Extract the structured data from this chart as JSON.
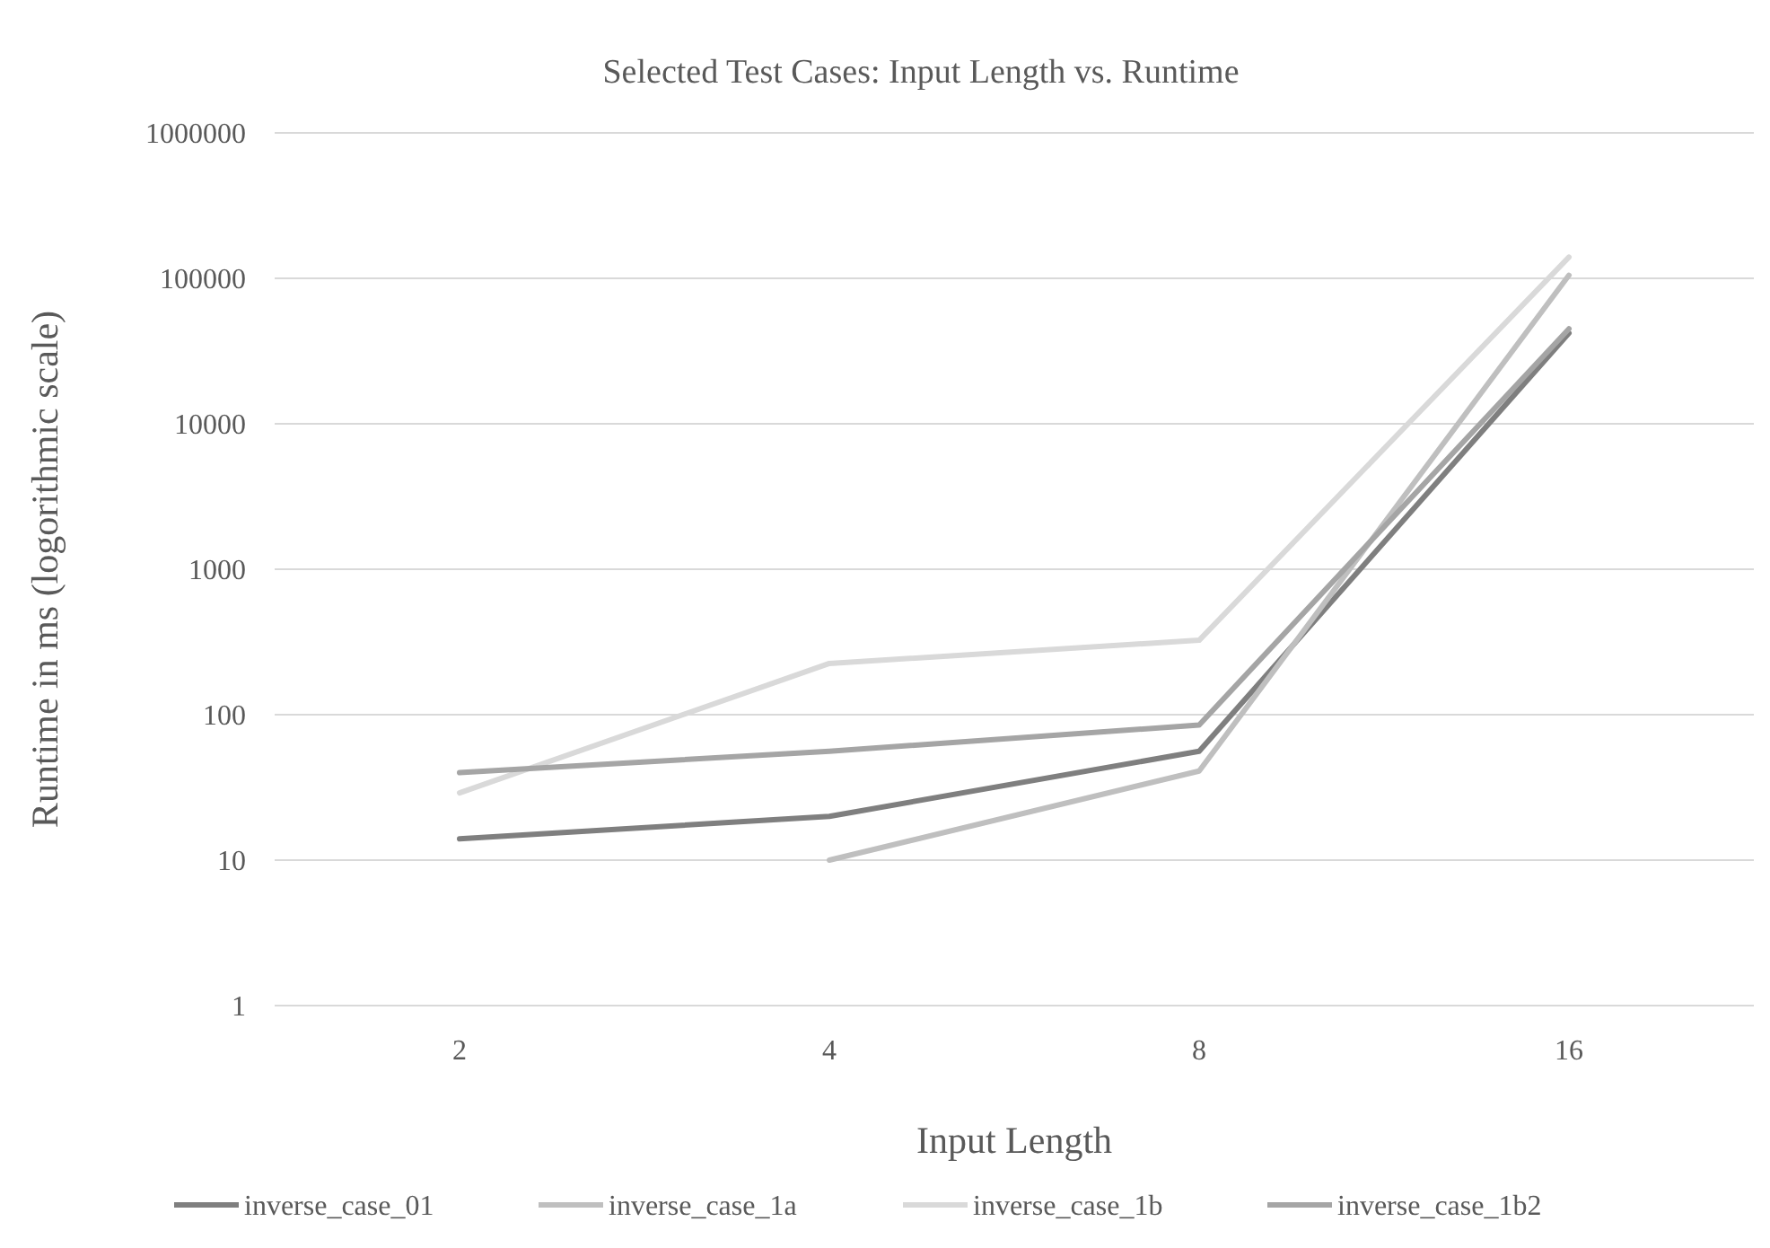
{
  "chart_data": {
    "type": "line",
    "title": "Selected Test Cases: Input Length vs. Runtime",
    "xlabel": "Input Length",
    "ylabel": "Runtime in ms (logorithmic scale)",
    "categories": [
      "2",
      "4",
      "8",
      "16"
    ],
    "series": [
      {
        "name": "inverse_case_01",
        "color": "#7f7f7f",
        "values": [
          14,
          20,
          56,
          42000
        ]
      },
      {
        "name": "inverse_case_1a",
        "color": "#bfbfbf",
        "values": [
          null,
          10,
          41,
          105000
        ]
      },
      {
        "name": "inverse_case_1b",
        "color": "#d9d9d9",
        "values": [
          29,
          225,
          325,
          140000
        ]
      },
      {
        "name": "inverse_case_1b2",
        "color": "#a5a5a5",
        "values": [
          40,
          56,
          85,
          45000
        ]
      }
    ],
    "log": "y",
    "ylim": [
      1,
      1000000
    ],
    "yticks": [
      1,
      10,
      100,
      1000,
      10000,
      100000,
      1000000
    ],
    "grid": "y",
    "legend": "bottom",
    "marker": "none",
    "line_style": "solid"
  }
}
